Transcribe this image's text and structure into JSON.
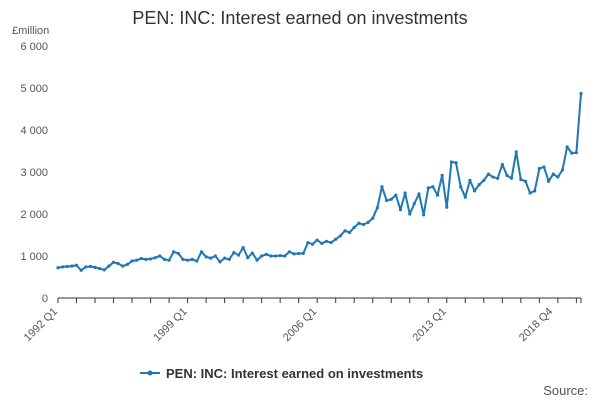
{
  "chart_data": {
    "type": "line",
    "title": "PEN: INC: Interest earned on investments",
    "ylabel": "£million",
    "xlabel": "",
    "ylim": [
      0,
      6000
    ],
    "yticks": [
      0,
      1000,
      2000,
      3000,
      4000,
      5000,
      6000
    ],
    "ytick_labels": [
      "0",
      "1 000",
      "2 000",
      "3 000",
      "4 000",
      "5 000",
      "6 000"
    ],
    "xtick_labels": [
      {
        "index": 0,
        "label": "1992 Q1"
      },
      {
        "index": 28,
        "label": "1999 Q1"
      },
      {
        "index": 56,
        "label": "2006 Q1"
      },
      {
        "index": 84,
        "label": "2013 Q1"
      },
      {
        "index": 107,
        "label": "2018 Q4"
      }
    ],
    "x_minor_tick_every": 4,
    "grid": false,
    "legend_position": "bottom-center",
    "source_text": "Source:",
    "series": [
      {
        "name": "PEN: INC: Interest earned on investments",
        "color": "#1f77b4",
        "values": [
          720,
          740,
          750,
          760,
          780,
          660,
          740,
          750,
          730,
          700,
          670,
          760,
          850,
          820,
          760,
          800,
          880,
          900,
          940,
          920,
          930,
          960,
          1000,
          920,
          900,
          1100,
          1060,
          920,
          900,
          920,
          880,
          1100,
          980,
          950,
          1000,
          860,
          950,
          920,
          1080,
          1020,
          1200,
          960,
          1070,
          900,
          1000,
          1040,
          1000,
          1000,
          1010,
          1000,
          1100,
          1050,
          1060,
          1060,
          1320,
          1280,
          1380,
          1300,
          1350,
          1320,
          1400,
          1480,
          1600,
          1560,
          1680,
          1780,
          1750,
          1800,
          1900,
          2150,
          2650,
          2320,
          2350,
          2450,
          2100,
          2500,
          2000,
          2250,
          2480,
          1980,
          2620,
          2650,
          2450,
          2920,
          2160,
          3240,
          3220,
          2650,
          2400,
          2800,
          2550,
          2700,
          2800,
          2950,
          2880,
          2850,
          3180,
          2920,
          2850,
          3480,
          2820,
          2780,
          2500,
          2550,
          3080,
          3120,
          2780,
          2950
        ],
        "tail_values": [
          2880,
          3050,
          3600,
          3450,
          3460,
          4870
        ]
      }
    ]
  }
}
